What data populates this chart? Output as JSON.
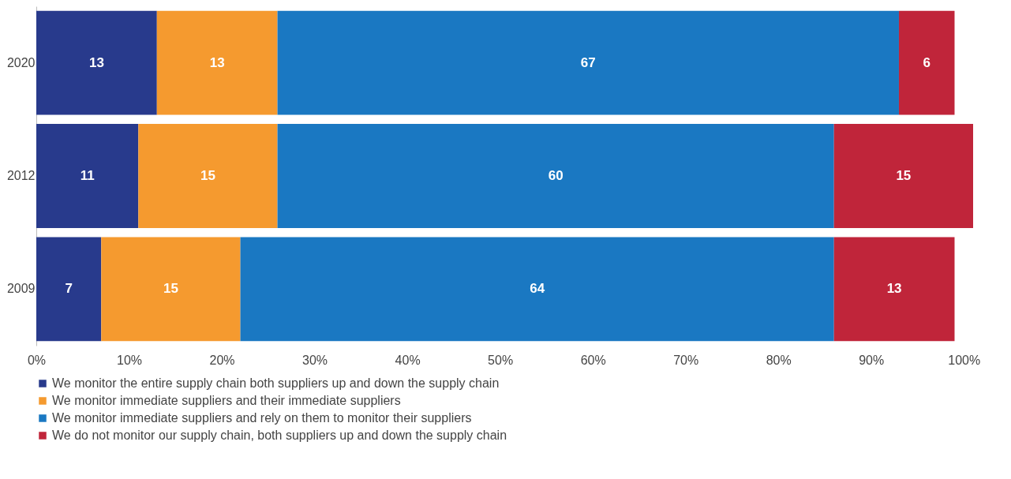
{
  "chart_data": {
    "type": "bar",
    "orientation": "horizontal",
    "stacked": true,
    "data_labels": true,
    "grid": false,
    "legend": "bottom",
    "categories": [
      "2020",
      "2012",
      "2009"
    ],
    "series": [
      {
        "name": "We monitor the entire supply chain both suppliers up and down the supply chain",
        "color": "#283a8c",
        "values": [
          13,
          11,
          7
        ]
      },
      {
        "name": "We monitor immediate suppliers and their immediate suppliers",
        "color": "#f59a2f",
        "values": [
          13,
          15,
          15
        ]
      },
      {
        "name": "We monitor immediate suppliers and rely on them to monitor their suppliers",
        "color": "#1a78c2",
        "values": [
          67,
          60,
          64
        ]
      },
      {
        "name": "We do not monitor our supply chain, both suppliers up and down the supply chain",
        "color": "#c0253a",
        "values": [
          6,
          15,
          13
        ]
      }
    ],
    "xlim": [
      0,
      101
    ],
    "xticks": [
      {
        "value": 0,
        "label": "0%"
      },
      {
        "value": 10,
        "label": "10%"
      },
      {
        "value": 20,
        "label": "20%"
      },
      {
        "value": 30,
        "label": "30%"
      },
      {
        "value": 40,
        "label": "40%"
      },
      {
        "value": 50,
        "label": "50%"
      },
      {
        "value": 60,
        "label": "60%"
      },
      {
        "value": 70,
        "label": "70%"
      },
      {
        "value": 80,
        "label": "80%"
      },
      {
        "value": 90,
        "label": "90%"
      },
      {
        "value": 100,
        "label": "100%"
      }
    ]
  }
}
